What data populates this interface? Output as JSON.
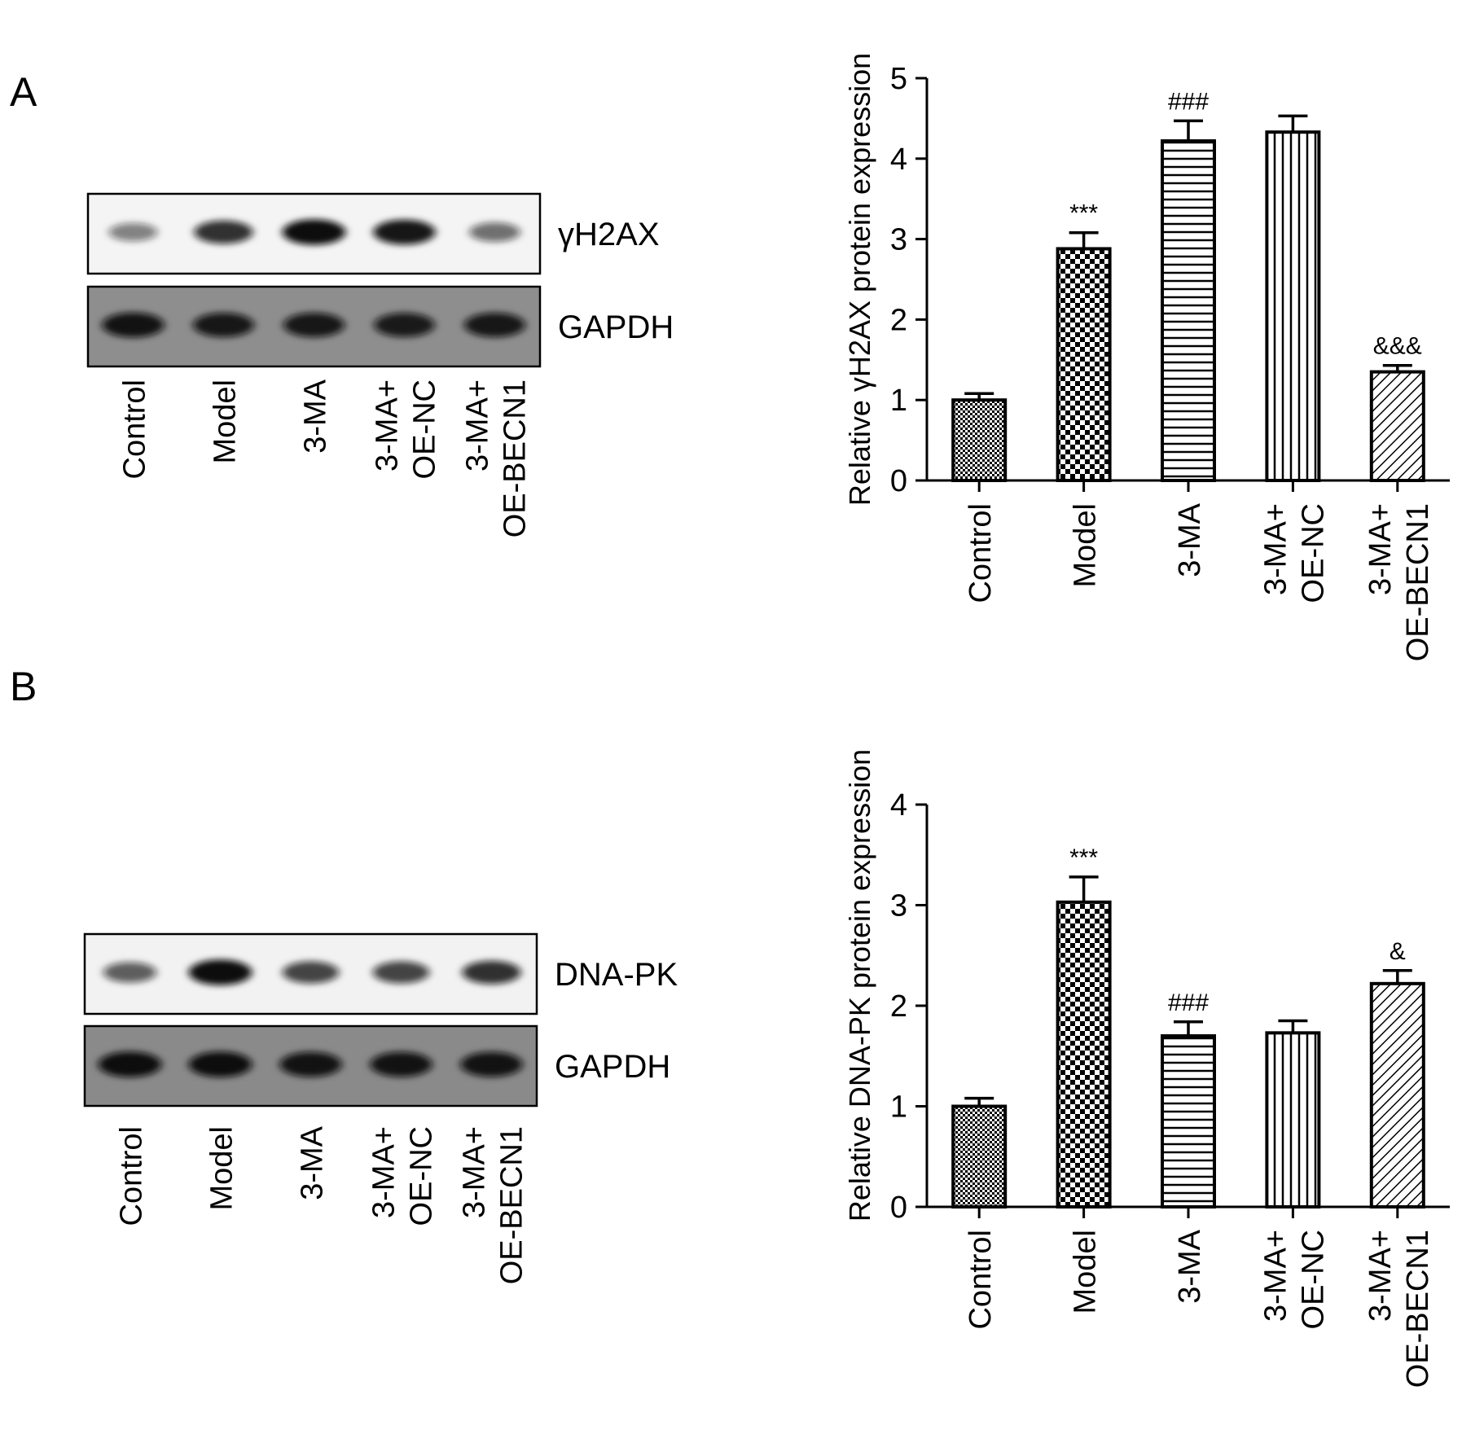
{
  "panels": [
    {
      "label": "A",
      "blot": {
        "rows": [
          {
            "name": "γH2AX",
            "intensity": [
              0.35,
              0.8,
              1.0,
              0.95,
              0.45
            ],
            "bg": "#f4f4f4",
            "band_color": "#111111"
          },
          {
            "name": "GAPDH",
            "intensity": [
              0.95,
              0.9,
              0.9,
              0.88,
              0.9
            ],
            "bg": "#8e8e8e",
            "band_color": "#0a0a0a"
          }
        ],
        "lanes": [
          "Control",
          "Model",
          "3-MA",
          "3-MA+\nOE-NC",
          "3-MA+\nOE-BECN1"
        ]
      }
    },
    {
      "label": "B",
      "blot": {
        "rows": [
          {
            "name": "DNA-PK",
            "intensity": [
              0.55,
              1.0,
              0.7,
              0.7,
              0.8
            ],
            "bg": "#f2f2f2",
            "band_color": "#111111"
          },
          {
            "name": "GAPDH",
            "intensity": [
              1.0,
              1.0,
              0.95,
              0.95,
              0.95
            ],
            "bg": "#8a8a8a",
            "band_color": "#0a0a0a"
          }
        ],
        "lanes": [
          "Control",
          "Model",
          "3-MA",
          "3-MA+\nOE-NC",
          "3-MA+\nOE-BECN1"
        ]
      }
    }
  ],
  "chart_data": [
    {
      "type": "bar",
      "categories": [
        "Control",
        "Model",
        "3-MA",
        "3-MA+\nOE-NC",
        "3-MA+\nOE-BECN1"
      ],
      "values": [
        1.0,
        2.88,
        4.22,
        4.33,
        1.35
      ],
      "errors": [
        0.08,
        0.2,
        0.25,
        0.2,
        0.08
      ],
      "annotations": [
        "",
        "***",
        "###",
        "",
        "&&&"
      ],
      "patterns": [
        "fine-dots",
        "checker",
        "horizontal-lines",
        "vertical-lines",
        "diagonal-lines"
      ],
      "ylabel": "Relative γH2AX protein expression",
      "ylim": [
        0,
        5
      ],
      "yticks": [
        0,
        1,
        2,
        3,
        4,
        5
      ]
    },
    {
      "type": "bar",
      "categories": [
        "Control",
        "Model",
        "3-MA",
        "3-MA+\nOE-NC",
        "3-MA+\nOE-BECN1"
      ],
      "values": [
        1.0,
        3.03,
        1.7,
        1.73,
        2.22
      ],
      "errors": [
        0.08,
        0.25,
        0.14,
        0.12,
        0.13
      ],
      "annotations": [
        "",
        "***",
        "###",
        "",
        "&"
      ],
      "patterns": [
        "fine-dots",
        "checker",
        "horizontal-lines",
        "vertical-lines",
        "diagonal-lines"
      ],
      "ylabel": "Relative DNA-PK protein expression",
      "ylim": [
        0,
        4
      ],
      "yticks": [
        0,
        1,
        2,
        3,
        4
      ]
    }
  ]
}
